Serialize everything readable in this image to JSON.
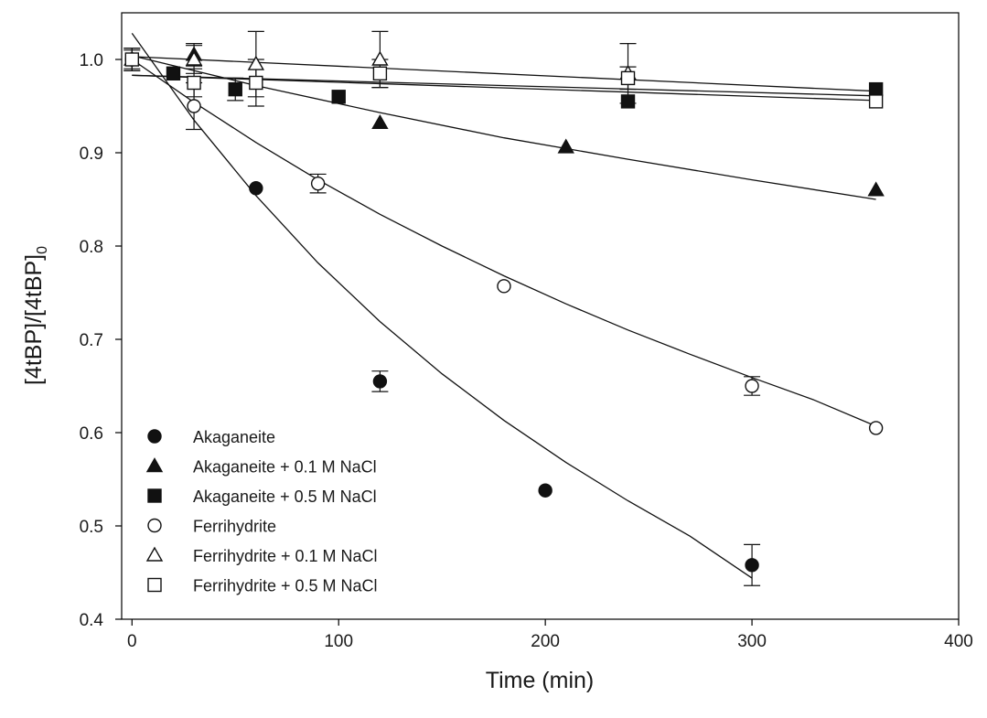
{
  "chart_data": {
    "type": "scatter",
    "xlabel": "Time (min)",
    "ylabel_parts": [
      "[4tBP]/[4tBP]",
      "0"
    ],
    "xlim": [
      -5,
      400
    ],
    "ylim": [
      0.4,
      1.05
    ],
    "xticks": [
      0,
      100,
      200,
      300,
      400
    ],
    "yticks": [
      0.4,
      0.5,
      0.6,
      0.7,
      0.8,
      0.9,
      1.0
    ],
    "xtick_labels": [
      "0",
      "100",
      "200",
      "300",
      "400"
    ],
    "ytick_labels": [
      "0.4",
      "0.5",
      "0.6",
      "0.7",
      "0.8",
      "0.9",
      "1.0"
    ],
    "grid": false,
    "legend_position": "bottom-left",
    "series": [
      {
        "name": "Akaganeite",
        "marker": "circle-filled",
        "points": [
          [
            0,
            1.0
          ],
          [
            60,
            0.862
          ],
          [
            120,
            0.655
          ],
          [
            200,
            0.538
          ],
          [
            300,
            0.458
          ]
        ],
        "errors": [
          0.012,
          0.003,
          0.011,
          0.004,
          0.022
        ],
        "fit": [
          [
            0,
            1.028
          ],
          [
            30,
            0.935
          ],
          [
            60,
            0.854
          ],
          [
            90,
            0.782
          ],
          [
            120,
            0.719
          ],
          [
            150,
            0.663
          ],
          [
            180,
            0.613
          ],
          [
            210,
            0.568
          ],
          [
            240,
            0.527
          ],
          [
            270,
            0.489
          ],
          [
            300,
            0.444
          ]
        ]
      },
      {
        "name": "Akaganeite + 0.1 M NaCl",
        "marker": "triangle-filled",
        "points": [
          [
            30,
            1.005
          ],
          [
            120,
            0.932
          ],
          [
            210,
            0.906
          ],
          [
            360,
            0.86
          ]
        ],
        "errors": [
          0.012,
          0.003,
          0.003,
          0.003
        ],
        "fit": [
          [
            0,
            1.004
          ],
          [
            60,
            0.972
          ],
          [
            120,
            0.943
          ],
          [
            180,
            0.916
          ],
          [
            240,
            0.893
          ],
          [
            300,
            0.871
          ],
          [
            360,
            0.85
          ]
        ]
      },
      {
        "name": "Akaganeite + 0.5 M NaCl",
        "marker": "square-filled",
        "points": [
          [
            20,
            0.985
          ],
          [
            50,
            0.968
          ],
          [
            100,
            0.96
          ],
          [
            240,
            0.955
          ],
          [
            360,
            0.968
          ]
        ],
        "errors": [
          0.004,
          0.012,
          0.004,
          0.004,
          0.004
        ],
        "fit": [
          [
            0,
            0.983
          ],
          [
            360,
            0.961
          ]
        ]
      },
      {
        "name": "Ferrihydrite",
        "marker": "circle-open",
        "points": [
          [
            0,
            1.0
          ],
          [
            30,
            0.95
          ],
          [
            90,
            0.867
          ],
          [
            180,
            0.757
          ],
          [
            300,
            0.65
          ],
          [
            360,
            0.605
          ]
        ],
        "errors": [
          0.006,
          0.025,
          0.01,
          0.005,
          0.01,
          0.005
        ],
        "fit": [
          [
            0,
            1.0
          ],
          [
            30,
            0.954
          ],
          [
            60,
            0.911
          ],
          [
            90,
            0.871
          ],
          [
            120,
            0.834
          ],
          [
            150,
            0.8
          ],
          [
            180,
            0.768
          ],
          [
            210,
            0.738
          ],
          [
            240,
            0.71
          ],
          [
            270,
            0.684
          ],
          [
            300,
            0.659
          ],
          [
            330,
            0.635
          ],
          [
            360,
            0.607
          ]
        ]
      },
      {
        "name": "Ferrihydrite + 0.1 M NaCl",
        "marker": "triangle-open",
        "points": [
          [
            0,
            1.0
          ],
          [
            30,
            1.0
          ],
          [
            60,
            0.995
          ],
          [
            120,
            1.0
          ],
          [
            240,
            0.985
          ]
        ],
        "errors": [
          0.01,
          0.015,
          0.035,
          0.03,
          0.032
        ],
        "fit": [
          [
            0,
            1.003
          ],
          [
            360,
            0.966
          ]
        ]
      },
      {
        "name": "Ferrihydrite + 0.5 M NaCl",
        "marker": "square-open",
        "points": [
          [
            0,
            1.0
          ],
          [
            30,
            0.975
          ],
          [
            60,
            0.975
          ],
          [
            120,
            0.985
          ],
          [
            240,
            0.98
          ],
          [
            360,
            0.955
          ]
        ],
        "errors": [
          0.012,
          0.015,
          0.025,
          0.015,
          0.012,
          0.004
        ],
        "fit": [
          [
            0,
            0.983
          ],
          [
            360,
            0.956
          ]
        ]
      }
    ]
  }
}
